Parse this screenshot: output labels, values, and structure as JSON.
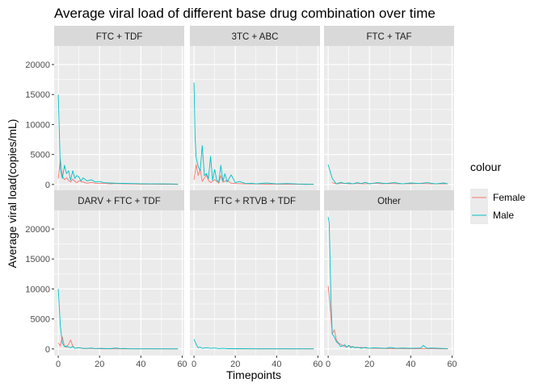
{
  "chart_data": {
    "type": "line",
    "title": "Average viral load of different base drug combination over time",
    "xlabel": "Timepoints",
    "ylabel": "Average viral load(copies/mL)",
    "xlim": [
      -2,
      61
    ],
    "ylim": [
      -1100,
      23100
    ],
    "x_ticks": [
      0,
      20,
      40,
      60
    ],
    "y_ticks": [
      0,
      5000,
      10000,
      15000,
      20000
    ],
    "grid": true,
    "legend": {
      "title": "colour",
      "position": "right",
      "entries": [
        {
          "label": "Female",
          "color": "#F8766D"
        },
        {
          "label": "Male",
          "color": "#00BFC4"
        }
      ]
    },
    "panels": [
      {
        "title": "FTC + TDF",
        "series": [
          {
            "name": "Female",
            "color": "#F8766D",
            "x": [
              0,
              1,
              2,
              3,
              4,
              5,
              6,
              7,
              8,
              9,
              10,
              12,
              14,
              16,
              18,
              20,
              22,
              25,
              28,
              32,
              36,
              40,
              45,
              50,
              55,
              58
            ],
            "y": [
              1000,
              4200,
              1400,
              800,
              1100,
              700,
              400,
              900,
              500,
              300,
              600,
              400,
              200,
              350,
              200,
              150,
              200,
              100,
              150,
              100,
              80,
              60,
              50,
              40,
              30,
              20
            ]
          },
          {
            "name": "Male",
            "color": "#00BFC4",
            "x": [
              0,
              1,
              2,
              3,
              4,
              5,
              6,
              7,
              8,
              9,
              10,
              11,
              12,
              14,
              16,
              18,
              20,
              22,
              25,
              28,
              32,
              36,
              40,
              45,
              50,
              55,
              58
            ],
            "y": [
              15000,
              2500,
              1000,
              3200,
              1800,
              2300,
              700,
              2300,
              1000,
              1500,
              1200,
              600,
              1100,
              600,
              800,
              400,
              500,
              300,
              250,
              200,
              180,
              150,
              120,
              100,
              90,
              80,
              60
            ]
          }
        ]
      },
      {
        "title": "3TC + ABC",
        "series": [
          {
            "name": "Female",
            "color": "#F8766D",
            "x": [
              0,
              1,
              2,
              3,
              4,
              6,
              7,
              8,
              10,
              12,
              13,
              14,
              16,
              18,
              20,
              25,
              30,
              35,
              40,
              45,
              50,
              55,
              58
            ],
            "y": [
              800,
              3300,
              1500,
              2500,
              500,
              1600,
              700,
              300,
              800,
              200,
              1500,
              400,
              700,
              200,
              150,
              100,
              80,
              60,
              50,
              40,
              30,
              20,
              20
            ]
          },
          {
            "name": "Male",
            "color": "#00BFC4",
            "x": [
              0,
              0.5,
              1,
              2,
              3,
              4,
              5,
              6,
              7,
              8,
              9,
              10,
              11,
              12,
              13,
              14,
              15,
              16,
              18,
              20,
              22,
              25,
              28,
              30,
              35,
              40,
              45,
              50,
              55,
              58
            ],
            "y": [
              17000,
              8000,
              4500,
              3000,
              2300,
              6500,
              1500,
              1800,
              1000,
              4700,
              700,
              2500,
              700,
              400,
              3200,
              500,
              1800,
              400,
              1600,
              300,
              500,
              150,
              200,
              100,
              250,
              100,
              150,
              80,
              60,
              50
            ]
          }
        ]
      },
      {
        "title": "FTC + TAF",
        "series": [
          {
            "name": "Female",
            "color": "#F8766D",
            "x": [
              2,
              4,
              6,
              8,
              10,
              14,
              18,
              22,
              26,
              30,
              35,
              40,
              45,
              50,
              55,
              58
            ],
            "y": [
              300,
              100,
              150,
              200,
              100,
              150,
              100,
              200,
              120,
              150,
              100,
              120,
              150,
              100,
              120,
              100
            ]
          },
          {
            "name": "Male",
            "color": "#00BFC4",
            "x": [
              0,
              2,
              4,
              6,
              8,
              10,
              12,
              14,
              16,
              18,
              20,
              24,
              28,
              32,
              36,
              40,
              44,
              48,
              52,
              56,
              58
            ],
            "y": [
              3300,
              1000,
              100,
              350,
              150,
              250,
              100,
              300,
              150,
              350,
              100,
              300,
              150,
              300,
              100,
              250,
              150,
              300,
              100,
              250,
              100
            ]
          }
        ]
      },
      {
        "title": "DARV + FTC + TDF",
        "series": [
          {
            "name": "Female",
            "color": "#F8766D",
            "x": [
              0,
              1,
              2,
              3,
              4,
              5,
              6,
              7,
              8,
              10,
              12,
              15,
              20,
              25,
              30,
              35,
              40,
              45,
              50,
              55,
              58
            ],
            "y": [
              1000,
              500,
              2000,
              400,
              300,
              800,
              1500,
              500,
              100,
              200,
              50,
              80,
              30,
              20,
              20,
              15,
              10,
              10,
              10,
              5,
              5
            ]
          },
          {
            "name": "Male",
            "color": "#00BFC4",
            "x": [
              0,
              1,
              2,
              3,
              4,
              5,
              6,
              7,
              8,
              9,
              10,
              12,
              14,
              16,
              18,
              20,
              25,
              28,
              30,
              32,
              35,
              40,
              45,
              50,
              55,
              58
            ],
            "y": [
              10000,
              3800,
              1000,
              400,
              500,
              300,
              200,
              400,
              100,
              150,
              200,
              100,
              80,
              150,
              60,
              100,
              40,
              150,
              50,
              80,
              20,
              20,
              15,
              10,
              10,
              10
            ]
          }
        ]
      },
      {
        "title": "FTC + RTVB + TDF",
        "series": [
          {
            "name": "Female",
            "color": "#F8766D",
            "x": [
              16,
              20,
              25,
              30,
              35,
              40,
              45,
              50,
              55,
              58
            ],
            "y": [
              30,
              20,
              20,
              15,
              15,
              10,
              10,
              10,
              10,
              10
            ]
          },
          {
            "name": "Male",
            "color": "#00BFC4",
            "x": [
              0,
              1,
              2,
              3,
              4,
              6,
              8,
              10,
              12,
              14,
              16,
              20,
              25,
              30,
              35,
              40,
              45,
              50,
              55,
              58
            ],
            "y": [
              1600,
              800,
              200,
              300,
              100,
              200,
              100,
              150,
              60,
              100,
              50,
              40,
              30,
              20,
              20,
              15,
              10,
              10,
              10,
              10
            ]
          }
        ]
      },
      {
        "title": "Other",
        "series": [
          {
            "name": "Female",
            "color": "#F8766D",
            "x": [
              0,
              1,
              2,
              3,
              4,
              5,
              6,
              7,
              8,
              9,
              10,
              12,
              14,
              16,
              18,
              20,
              25,
              30,
              35,
              40,
              45,
              50,
              55,
              58
            ],
            "y": [
              10500,
              7000,
              2500,
              3200,
              1500,
              1000,
              800,
              600,
              400,
              300,
              500,
              300,
              200,
              250,
              150,
              100,
              80,
              60,
              50,
              40,
              30,
              30,
              20,
              20
            ]
          },
          {
            "name": "Male",
            "color": "#00BFC4",
            "x": [
              0,
              0.5,
              1,
              1.5,
              2,
              3,
              4,
              5,
              6,
              7,
              8,
              9,
              10,
              11,
              12,
              13,
              14,
              15,
              16,
              18,
              20,
              22,
              25,
              28,
              30,
              33,
              36,
              40,
              45,
              46,
              48,
              50,
              55,
              58
            ],
            "y": [
              22000,
              21000,
              13500,
              7000,
              2500,
              2000,
              1200,
              900,
              400,
              500,
              700,
              300,
              600,
              200,
              400,
              150,
              300,
              200,
              100,
              250,
              100,
              200,
              150,
              100,
              250,
              100,
              150,
              100,
              150,
              600,
              100,
              150,
              80,
              60
            ]
          }
        ]
      }
    ]
  }
}
